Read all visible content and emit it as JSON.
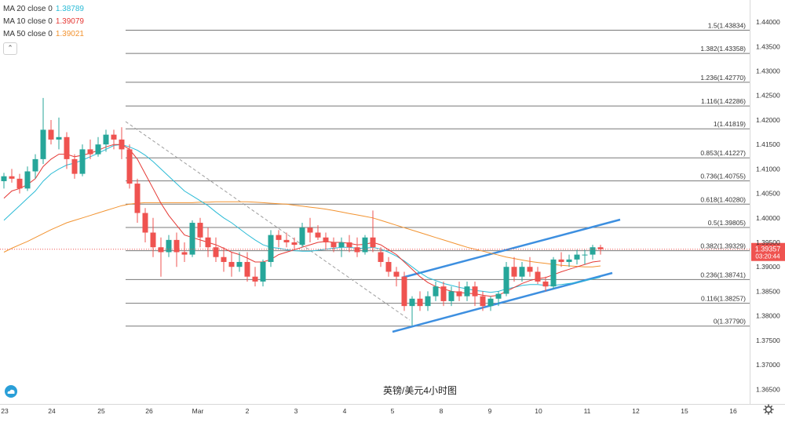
{
  "legend": {
    "items": [
      {
        "label": "MA 20 close 0",
        "value": "1.38789",
        "color": "#2bbbd6"
      },
      {
        "label": "MA 10 close 0",
        "value": "1.39079",
        "color": "#e53935"
      },
      {
        "label": "MA 50 close 0",
        "value": "1.39021",
        "color": "#f29330"
      }
    ],
    "collapse_icon": "chevron-up-icon",
    "collapse_glyph": "⌃"
  },
  "price_tag": {
    "price": "1.39357",
    "countdown": "03:20:44",
    "color": "#ef5350"
  },
  "logo_icon": "cloud-logo-icon",
  "settings_icon": "gear-icon",
  "chart_data": {
    "type": "candlestick",
    "title": "英镑/美元4小时图",
    "y_range": [
      1.362,
      1.4445
    ],
    "y_ticks": [
      "1.36500",
      "1.37000",
      "1.37500",
      "1.38000",
      "1.38500",
      "1.39000",
      "1.39500",
      "1.40000",
      "1.40500",
      "1.41000",
      "1.41500",
      "1.42000",
      "1.42500",
      "1.43000",
      "1.43500",
      "1.44000"
    ],
    "x_labels": [
      "23",
      "24",
      "25",
      "26",
      "Mar",
      "2",
      "3",
      "4",
      "5",
      "8",
      "9",
      "10",
      "11",
      "12",
      "15",
      "16"
    ],
    "fib_levels": [
      {
        "ratio": "1.5",
        "price": "1.43834",
        "value": 1.43834
      },
      {
        "ratio": "1.382",
        "price": "1.43358",
        "value": 1.43358
      },
      {
        "ratio": "1.236",
        "price": "1.42770",
        "value": 1.4277
      },
      {
        "ratio": "1.116",
        "price": "1.42286",
        "value": 1.42286
      },
      {
        "ratio": "1",
        "price": "1.41819",
        "value": 1.41819
      },
      {
        "ratio": "0.853",
        "price": "1.41227",
        "value": 1.41227
      },
      {
        "ratio": "0.736",
        "price": "1.40755",
        "value": 1.40755
      },
      {
        "ratio": "0.618",
        "price": "1.40280",
        "value": 1.4028
      },
      {
        "ratio": "0.5",
        "price": "1.39805",
        "value": 1.39805
      },
      {
        "ratio": "0.382",
        "price": "1.39329",
        "value": 1.39329
      },
      {
        "ratio": "0.236",
        "price": "1.38741",
        "value": 1.38741
      },
      {
        "ratio": "0.116",
        "price": "1.38257",
        "value": 1.38257
      },
      {
        "ratio": "0",
        "price": "1.37790",
        "value": 1.3779
      }
    ],
    "candles": [
      [
        1.4075,
        1.4092,
        1.406,
        1.4085
      ],
      [
        1.4085,
        1.41,
        1.4072,
        1.408
      ],
      [
        1.408,
        1.409,
        1.405,
        1.406
      ],
      [
        1.406,
        1.4105,
        1.4055,
        1.4095
      ],
      [
        1.4095,
        1.413,
        1.408,
        1.412
      ],
      [
        1.412,
        1.4245,
        1.411,
        1.418
      ],
      [
        1.418,
        1.42,
        1.415,
        1.416
      ],
      [
        1.416,
        1.4205,
        1.414,
        1.4165
      ],
      [
        1.4165,
        1.4175,
        1.41,
        1.412
      ],
      [
        1.412,
        1.413,
        1.408,
        1.409
      ],
      [
        1.409,
        1.415,
        1.4085,
        1.414
      ],
      [
        1.414,
        1.416,
        1.412,
        1.413
      ],
      [
        1.413,
        1.4165,
        1.4125,
        1.415
      ],
      [
        1.415,
        1.418,
        1.4135,
        1.417
      ],
      [
        1.417,
        1.418,
        1.414,
        1.416
      ],
      [
        1.416,
        1.4185,
        1.412,
        1.414
      ],
      [
        1.414,
        1.415,
        1.406,
        1.407
      ],
      [
        1.407,
        1.408,
        1.399,
        1.401
      ],
      [
        1.401,
        1.402,
        1.395,
        1.397
      ],
      [
        1.397,
        1.4,
        1.392,
        1.394
      ],
      [
        1.394,
        1.396,
        1.388,
        1.393
      ],
      [
        1.393,
        1.3965,
        1.392,
        1.3955
      ],
      [
        1.3955,
        1.397,
        1.39,
        1.393
      ],
      [
        1.393,
        1.395,
        1.391,
        1.3925
      ],
      [
        1.3925,
        1.3995,
        1.392,
        1.399
      ],
      [
        1.399,
        1.4,
        1.394,
        1.396
      ],
      [
        1.396,
        1.398,
        1.392,
        1.394
      ],
      [
        1.394,
        1.396,
        1.391,
        1.392
      ],
      [
        1.392,
        1.394,
        1.389,
        1.391
      ],
      [
        1.391,
        1.393,
        1.388,
        1.39
      ],
      [
        1.39,
        1.393,
        1.389,
        1.391
      ],
      [
        1.391,
        1.393,
        1.387,
        1.388
      ],
      [
        1.388,
        1.39,
        1.386,
        1.387
      ],
      [
        1.387,
        1.3915,
        1.386,
        1.391
      ],
      [
        1.391,
        1.3975,
        1.39,
        1.3965
      ],
      [
        1.3965,
        1.3975,
        1.394,
        1.3955
      ],
      [
        1.3955,
        1.397,
        1.394,
        1.395
      ],
      [
        1.395,
        1.396,
        1.3935,
        1.3945
      ],
      [
        1.3945,
        1.399,
        1.394,
        1.398
      ],
      [
        1.398,
        1.4,
        1.395,
        1.397
      ],
      [
        1.397,
        1.3985,
        1.3955,
        1.396
      ],
      [
        1.396,
        1.397,
        1.3935,
        1.395
      ],
      [
        1.395,
        1.396,
        1.393,
        1.394
      ],
      [
        1.394,
        1.396,
        1.392,
        1.395
      ],
      [
        1.395,
        1.3965,
        1.393,
        1.394
      ],
      [
        1.394,
        1.396,
        1.392,
        1.393
      ],
      [
        1.393,
        1.3965,
        1.3925,
        1.396
      ],
      [
        1.396,
        1.4015,
        1.393,
        1.394
      ],
      [
        1.393,
        1.394,
        1.39,
        1.391
      ],
      [
        1.391,
        1.392,
        1.388,
        1.389
      ],
      [
        1.389,
        1.39,
        1.386,
        1.388
      ],
      [
        1.388,
        1.389,
        1.381,
        1.382
      ],
      [
        1.382,
        1.384,
        1.378,
        1.3835
      ],
      [
        1.3835,
        1.385,
        1.381,
        1.382
      ],
      [
        1.382,
        1.385,
        1.381,
        1.384
      ],
      [
        1.384,
        1.387,
        1.383,
        1.386
      ],
      [
        1.386,
        1.387,
        1.382,
        1.383
      ],
      [
        1.383,
        1.386,
        1.382,
        1.385
      ],
      [
        1.385,
        1.387,
        1.383,
        1.384
      ],
      [
        1.384,
        1.387,
        1.383,
        1.386
      ],
      [
        1.386,
        1.387,
        1.382,
        1.384
      ],
      [
        1.384,
        1.385,
        1.381,
        1.382
      ],
      [
        1.382,
        1.384,
        1.381,
        1.3835
      ],
      [
        1.3835,
        1.385,
        1.382,
        1.3845
      ],
      [
        1.3845,
        1.391,
        1.384,
        1.39
      ],
      [
        1.39,
        1.392,
        1.387,
        1.388
      ],
      [
        1.388,
        1.391,
        1.387,
        1.39
      ],
      [
        1.39,
        1.392,
        1.388,
        1.389
      ],
      [
        1.389,
        1.39,
        1.3865,
        1.387
      ],
      [
        1.387,
        1.388,
        1.385,
        1.386
      ],
      [
        1.386,
        1.392,
        1.3855,
        1.3915
      ],
      [
        1.3915,
        1.393,
        1.39,
        1.391
      ],
      [
        1.391,
        1.3925,
        1.39,
        1.3915
      ],
      [
        1.3915,
        1.3935,
        1.3905,
        1.3925
      ],
      [
        1.3925,
        1.3935,
        1.3905,
        1.3925
      ],
      [
        1.3925,
        1.3945,
        1.3915,
        1.394
      ],
      [
        1.394,
        1.3945,
        1.3925,
        1.3936
      ]
    ],
    "ma10": [
      1.404,
      1.4055,
      1.406,
      1.4068,
      1.408,
      1.4105,
      1.412,
      1.413,
      1.413,
      1.4125,
      1.4128,
      1.4132,
      1.4138,
      1.4145,
      1.415,
      1.415,
      1.414,
      1.412,
      1.409,
      1.406,
      1.403,
      1.4005,
      1.3985,
      1.3965,
      1.396,
      1.3955,
      1.395,
      1.3945,
      1.3938,
      1.393,
      1.3925,
      1.3918,
      1.391,
      1.391,
      1.3915,
      1.3925,
      1.393,
      1.3935,
      1.394,
      1.3945,
      1.395,
      1.3952,
      1.395,
      1.395,
      1.3948,
      1.3945,
      1.3946,
      1.395,
      1.3945,
      1.3935,
      1.3925,
      1.391,
      1.3895,
      1.388,
      1.3868,
      1.386,
      1.3855,
      1.385,
      1.3848,
      1.3846,
      1.3845,
      1.3842,
      1.384,
      1.3842,
      1.385,
      1.3858,
      1.3866,
      1.3872,
      1.3876,
      1.3878,
      1.3884,
      1.389,
      1.3895,
      1.39,
      1.3905,
      1.391,
      1.3912
    ],
    "ma20": [
      1.3995,
      1.401,
      1.4025,
      1.404,
      1.4055,
      1.4075,
      1.409,
      1.41,
      1.4108,
      1.4112,
      1.4118,
      1.4125,
      1.4132,
      1.414,
      1.4148,
      1.415,
      1.4145,
      1.4138,
      1.4128,
      1.4115,
      1.41,
      1.4085,
      1.407,
      1.4055,
      1.4045,
      1.4035,
      1.4025,
      1.4012,
      1.4,
      1.399,
      1.3978,
      1.3966,
      1.3955,
      1.3945,
      1.394,
      1.3938,
      1.3935,
      1.3933,
      1.3932,
      1.3932,
      1.3934,
      1.3936,
      1.3938,
      1.394,
      1.394,
      1.3938,
      1.3938,
      1.394,
      1.3936,
      1.393,
      1.3922,
      1.3912,
      1.39,
      1.3888,
      1.3878,
      1.3872,
      1.3866,
      1.3862,
      1.3858,
      1.3855,
      1.3852,
      1.385,
      1.3848,
      1.385,
      1.3855,
      1.3858,
      1.3862,
      1.3864,
      1.3864,
      1.3862,
      1.3862,
      1.3864,
      1.3866,
      1.3868,
      1.3872,
      1.3875,
      1.3879
    ],
    "ma50": [
      1.393,
      1.3938,
      1.3945,
      1.3952,
      1.396,
      1.3968,
      1.3976,
      1.3983,
      1.399,
      1.3995,
      1.4,
      1.4005,
      1.401,
      1.4015,
      1.402,
      1.4025,
      1.4028,
      1.403,
      1.4031,
      1.4031,
      1.4031,
      1.4031,
      1.4031,
      1.4031,
      1.4031,
      1.4032,
      1.4032,
      1.4033,
      1.4033,
      1.4033,
      1.4033,
      1.4033,
      1.4032,
      1.4031,
      1.403,
      1.4029,
      1.4028,
      1.4026,
      1.4024,
      1.4022,
      1.402,
      1.4018,
      1.4015,
      1.4012,
      1.4009,
      1.4006,
      1.4003,
      1.4,
      1.3995,
      1.399,
      1.3985,
      1.398,
      1.3975,
      1.397,
      1.3965,
      1.396,
      1.3955,
      1.395,
      1.3945,
      1.394,
      1.3936,
      1.3932,
      1.3928,
      1.3924,
      1.392,
      1.3917,
      1.3914,
      1.3911,
      1.3909,
      1.3907,
      1.3905,
      1.3903,
      1.3902,
      1.3901,
      1.39,
      1.39,
      1.3902
    ]
  }
}
